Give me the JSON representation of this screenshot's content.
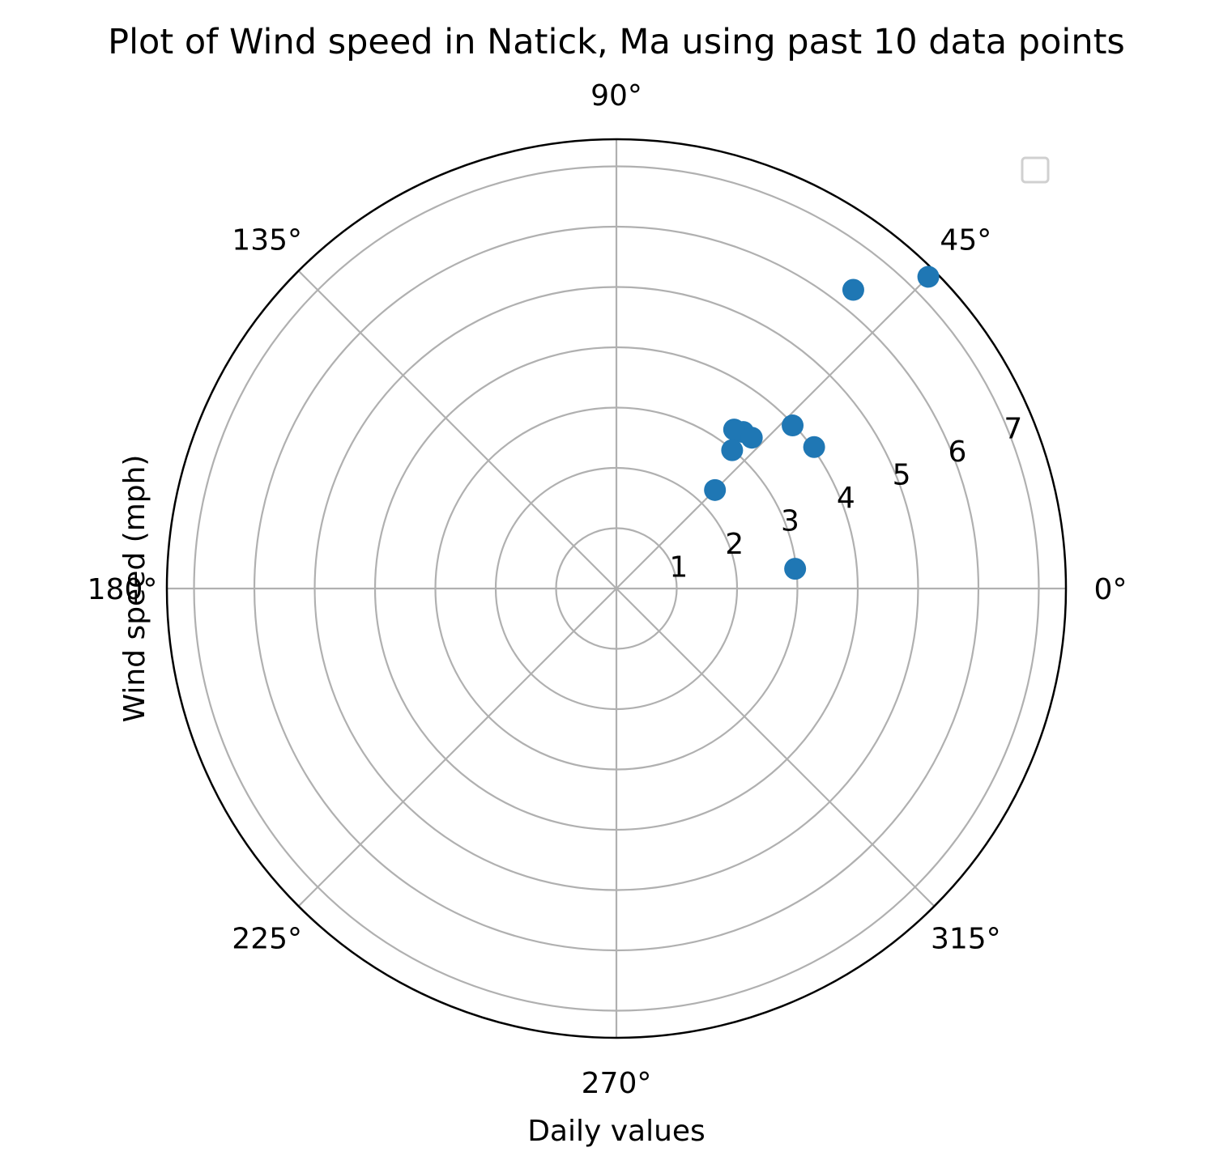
{
  "chart_data": {
    "type": "scatter",
    "projection": "polar",
    "title": "Plot of Wind speed in Natick, Ma using past 10 data points",
    "xlabel": "Daily values",
    "ylabel": "Wind speed (mph)",
    "theta_unit": "degrees",
    "theta_ticks": [
      "0°",
      "45°",
      "90°",
      "135°",
      "180°",
      "225°",
      "270°",
      "315°"
    ],
    "theta_tick_values": [
      0,
      45,
      90,
      135,
      180,
      225,
      270,
      315
    ],
    "r_ticks": [
      "1",
      "2",
      "3",
      "4",
      "5",
      "6",
      "7"
    ],
    "r_tick_values": [
      1,
      2,
      3,
      4,
      5,
      6,
      7
    ],
    "r_tick_angle": 22.5,
    "rlim": [
      0,
      7.45
    ],
    "grid": true,
    "legend": "top-right",
    "legend_entries": [],
    "marker_color": "#1f77b4",
    "series": [
      {
        "theta": [
          6.3,
          35.6,
          42.8,
          51.0,
          53.5,
          48.1,
          50.1,
          45.0,
          45.0,
          51.6
        ],
        "r": [
          2.98,
          4.03,
          3.98,
          3.34,
          3.28,
          3.36,
          2.99,
          2.31,
          7.31,
          6.32
        ]
      }
    ]
  }
}
